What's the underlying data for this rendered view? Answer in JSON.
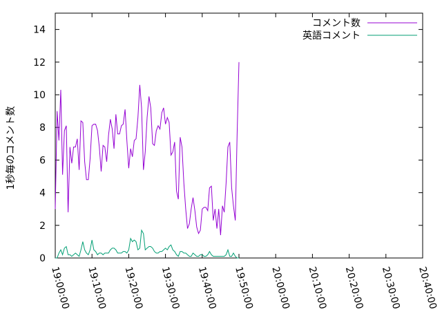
{
  "chart_data": {
    "type": "line",
    "title": "",
    "xlabel": "",
    "ylabel": "1秒毎のコメント数",
    "x_start": "19:00:00",
    "x_step_seconds": 30,
    "xlim": [
      "19:00:00",
      "20:40:00"
    ],
    "ylim": [
      0,
      15
    ],
    "x_ticks": [
      "19:00:00",
      "19:10:00",
      "19:20:00",
      "19:30:00",
      "19:40:00",
      "19:50:00",
      "20:00:00",
      "20:10:00",
      "20:20:00",
      "20:30:00",
      "20:40:00"
    ],
    "y_ticks": [
      "0",
      "2",
      "4",
      "6",
      "8",
      "10",
      "12",
      "14"
    ],
    "grid": false,
    "legend_position": "top-right",
    "series": [
      {
        "name": "コメント数",
        "color": "#9400d3",
        "values": [
          3.0,
          9.0,
          7.2,
          10.3,
          5.1,
          7.8,
          8.1,
          2.8,
          6.8,
          5.8,
          6.8,
          6.8,
          7.3,
          5.4,
          8.4,
          8.3,
          5.9,
          4.8,
          4.8,
          6.1,
          8.1,
          8.2,
          8.2,
          7.8,
          6.8,
          5.3,
          6.9,
          6.8,
          5.9,
          7.5,
          8.5,
          7.9,
          6.7,
          8.8,
          7.6,
          7.6,
          8.1,
          8.2,
          9.1,
          7.2,
          5.5,
          6.7,
          6.2,
          7.2,
          7.3,
          8.6,
          10.6,
          9.2,
          5.4,
          6.5,
          8.6,
          9.9,
          9.2,
          7.0,
          6.9,
          7.8,
          8.1,
          7.9,
          8.9,
          9.2,
          8.2,
          8.6,
          8.3,
          6.3,
          6.5,
          7.1,
          4.1,
          3.6,
          7.4,
          6.8,
          4.6,
          3.0,
          1.8,
          2.1,
          3.0,
          3.7,
          2.9,
          1.9,
          1.5,
          1.7,
          3.0,
          3.1,
          3.1,
          2.9,
          4.3,
          4.4,
          2.3,
          3.0,
          1.8,
          3.0,
          1.4,
          3.2,
          2.8,
          4.6,
          6.8,
          7.1,
          4.3,
          3.2,
          2.3,
          7.5,
          12.0
        ]
      },
      {
        "name": "英語コメント",
        "color": "#009e73",
        "values": [
          0.0,
          0.0,
          0.3,
          0.5,
          0.2,
          0.6,
          0.7,
          0.2,
          0.2,
          0.1,
          0.2,
          0.3,
          0.2,
          0.1,
          0.5,
          1.0,
          0.5,
          0.3,
          0.2,
          0.5,
          1.1,
          0.5,
          0.4,
          0.2,
          0.3,
          0.3,
          0.2,
          0.3,
          0.3,
          0.3,
          0.5,
          0.6,
          0.6,
          0.5,
          0.3,
          0.3,
          0.3,
          0.4,
          0.4,
          0.3,
          0.5,
          1.2,
          1.0,
          1.1,
          1.0,
          0.5,
          0.6,
          1.7,
          1.5,
          0.5,
          0.6,
          0.7,
          0.7,
          0.6,
          0.4,
          0.3,
          0.3,
          0.4,
          0.4,
          0.5,
          0.6,
          0.5,
          0.7,
          0.8,
          0.5,
          0.4,
          0.2,
          0.1,
          0.4,
          0.4,
          0.3,
          0.3,
          0.2,
          0.1,
          0.1,
          0.3,
          0.2,
          0.1,
          0.1,
          0.2,
          0.2,
          0.1,
          0.1,
          0.2,
          0.4,
          0.2,
          0.1,
          0.1,
          0.1,
          0.1,
          0.1,
          0.1,
          0.1,
          0.2,
          0.5,
          0.1,
          0.1,
          0.3,
          0.1,
          0.0,
          0.0
        ]
      }
    ]
  }
}
